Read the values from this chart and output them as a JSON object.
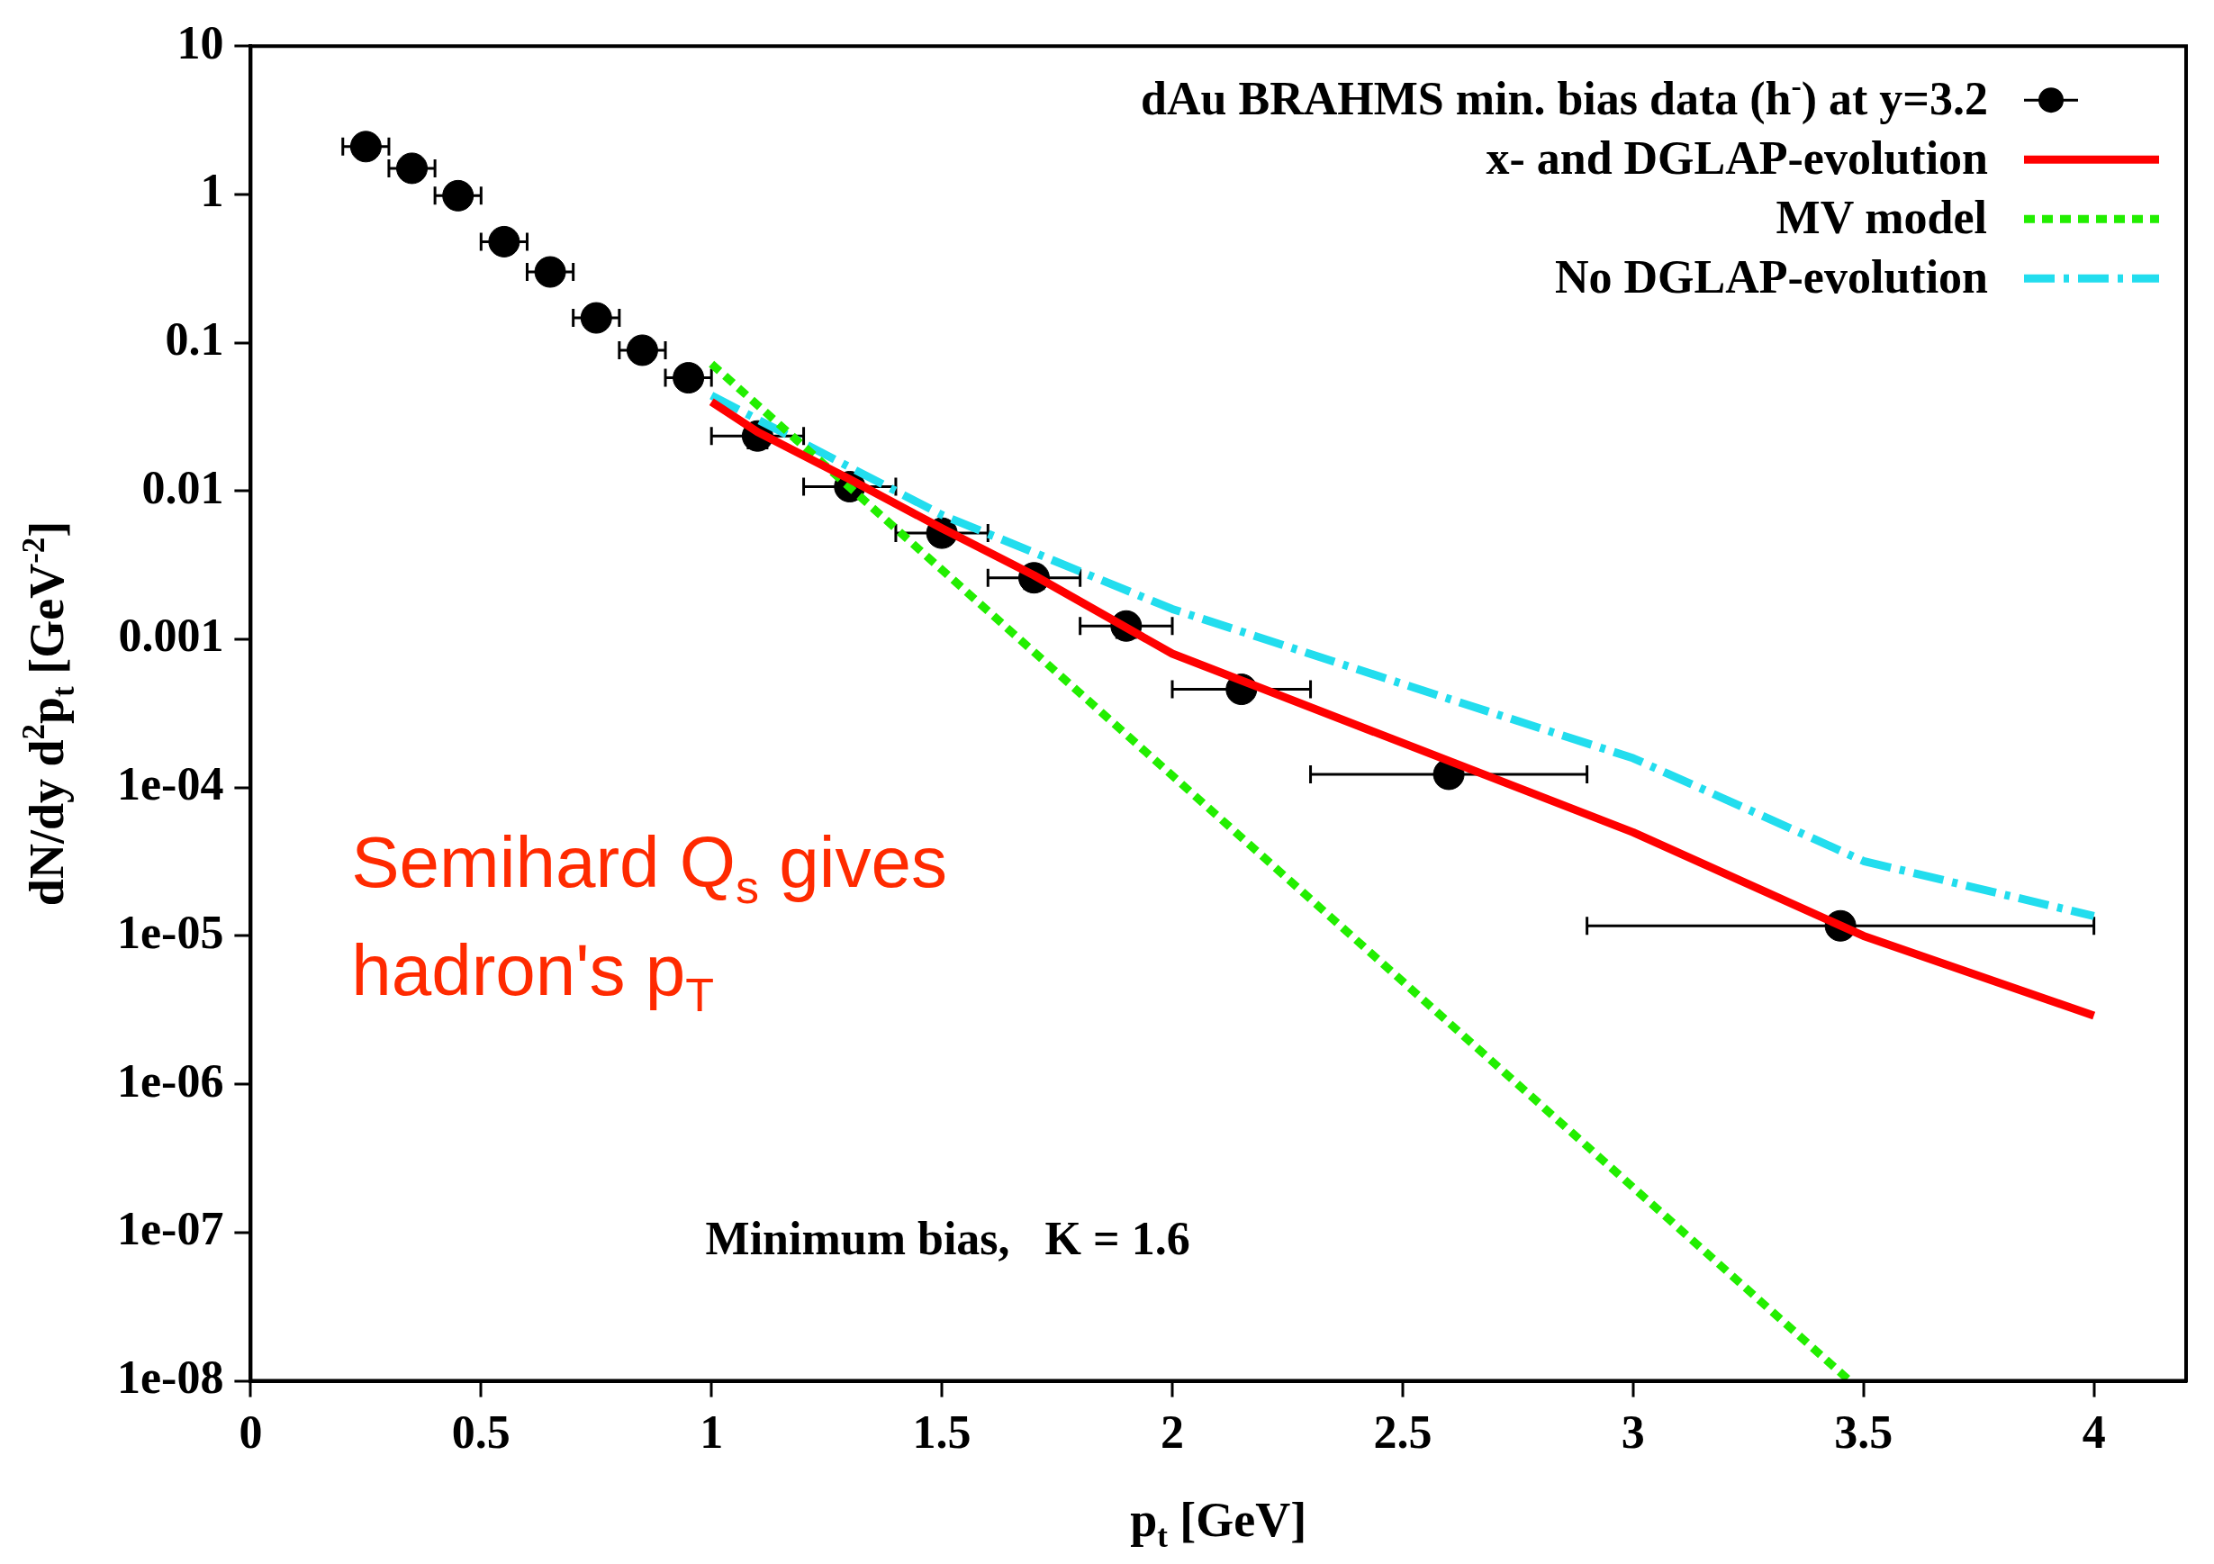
{
  "chart_data": {
    "type": "line",
    "xlabel": "p$_{t}$ [GeV]",
    "ylabel": "dN/dy d$^{2}$p$_{t}$ [GeV$^{-2}$]",
    "xlim": [
      0,
      4.2
    ],
    "xticks": [
      0,
      0.5,
      1,
      1.5,
      2,
      2.5,
      3,
      3.5,
      4
    ],
    "ylim": [
      1e-08,
      10
    ],
    "yticks": [
      10,
      1,
      0.1,
      0.01,
      0.001,
      {
        "value": 0.0001,
        "label": "1e-04"
      },
      {
        "value": 1e-05,
        "label": "1e-05"
      },
      {
        "value": 1e-06,
        "label": "1e-06"
      },
      {
        "value": 1e-07,
        "label": "1e-07"
      },
      {
        "value": 1e-08,
        "label": "1e-08"
      }
    ],
    "log": "y",
    "grid": false,
    "legend": "top right",
    "series": [
      {
        "name": "dAu BRAHMS min. bias data (h$^{-}$) at y=3.2",
        "type": "scatter",
        "marker": "circle",
        "color": "#000000",
        "x": [
          0.25,
          0.35,
          0.45,
          0.55,
          0.65,
          0.75,
          0.85,
          0.95,
          1.1,
          1.3,
          1.5,
          1.7,
          1.9,
          2.15,
          2.6,
          3.45
        ],
        "values": [
          2.1,
          1.5,
          0.98,
          0.48,
          0.3,
          0.147,
          0.089,
          0.058,
          0.0235,
          0.0107,
          0.0052,
          0.0026,
          0.00123,
          0.00046,
          0.000123,
          1.17e-05
        ],
        "errors": [
          0.25,
          0.2,
          0.1,
          0.05,
          0.04,
          0.02,
          0.012,
          0.008,
          0.004,
          0.0015,
          0.0007,
          0.0004,
          0.0002,
          6e-05,
          1.5e-05,
          1.5e-06
        ],
        "xerrors": [
          [
            0.2,
            0.3
          ],
          [
            0.3,
            0.4
          ],
          [
            0.4,
            0.5
          ],
          [
            0.5,
            0.6
          ],
          [
            0.6,
            0.7
          ],
          [
            0.7,
            0.8
          ],
          [
            0.8,
            0.9
          ],
          [
            0.9,
            1.0
          ],
          [
            1.0,
            1.2
          ],
          [
            1.2,
            1.4
          ],
          [
            1.4,
            1.6
          ],
          [
            1.6,
            1.8
          ],
          [
            1.8,
            2.0
          ],
          [
            2.0,
            2.3
          ],
          [
            2.3,
            2.9
          ],
          [
            2.9,
            4.0
          ]
        ]
      },
      {
        "name": "x- and DGLAP-evolution",
        "type": "line",
        "marker": "none",
        "line_style": "solid",
        "color": "#ff0000",
        "x": [
          1.0,
          1.1,
          1.3,
          1.5,
          1.7,
          2.0,
          2.5,
          3.0,
          3.5,
          4.0
        ],
        "values": [
          0.04,
          0.025,
          0.012,
          0.0056,
          0.0027,
          0.0008,
          0.0002,
          5e-05,
          1e-05,
          2.9e-06
        ]
      },
      {
        "name": "MV model",
        "type": "line",
        "marker": "none",
        "line_style": "dotted",
        "color": "#22ee00",
        "x": [
          1.0,
          3.47
        ],
        "values": [
          0.072,
          1e-08
        ]
      },
      {
        "name": "No DGLAP-evolution",
        "type": "line",
        "marker": "none",
        "line_style": "dashed",
        "color": "#22ddee",
        "x": [
          1.0,
          1.5,
          2.0,
          2.5,
          3.0,
          3.5,
          4.0
        ],
        "values": [
          0.044,
          0.0069,
          0.0016,
          0.0005,
          0.000158,
          3.2e-05,
          1.36e-05
        ]
      }
    ],
    "annotations": [
      "Semihard Q$_{s}$ gives hadron's p$_{T}$",
      "Minimum bias,   K = 1.6"
    ]
  }
}
